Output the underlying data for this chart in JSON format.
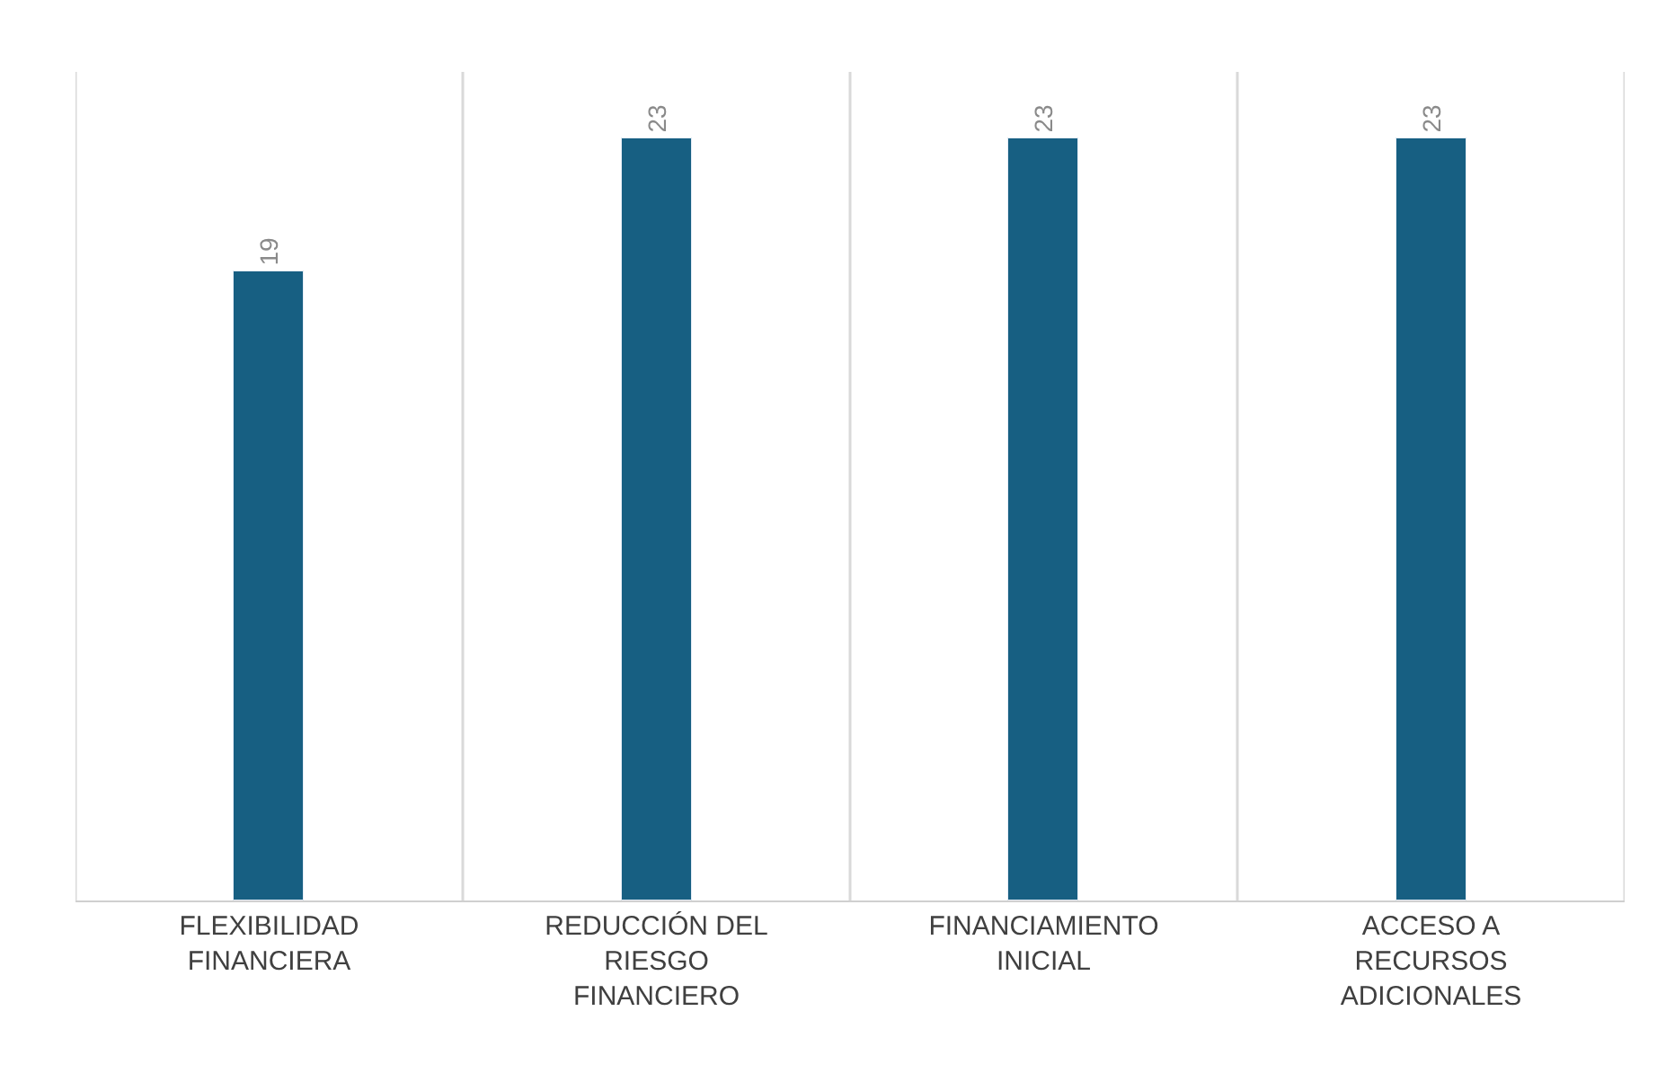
{
  "chart_data": {
    "type": "bar",
    "categories": [
      "FLEXIBILIDAD FINANCIERA",
      "REDUCCIÓN DEL RIESGO FINANCIERO",
      "FINANCIAMIENTO INICIAL",
      "ACCESO A RECURSOS ADICIONALES"
    ],
    "values": [
      19,
      23,
      23,
      23
    ],
    "color": "#175f82",
    "data_labels": true,
    "grid": "x"
  }
}
